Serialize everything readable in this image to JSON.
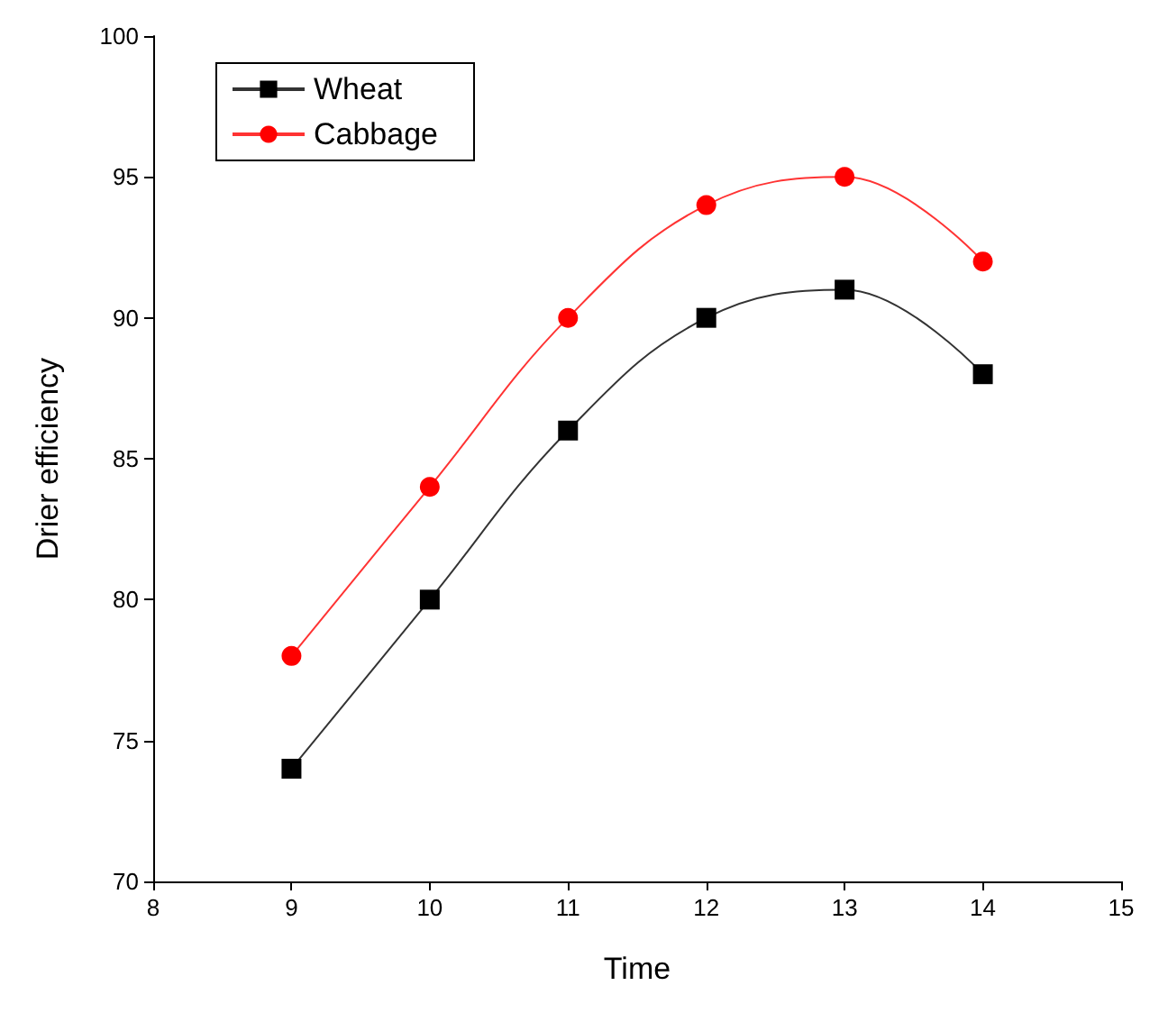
{
  "chart_data": {
    "type": "line",
    "xlabel": "Time",
    "ylabel": "Drier efficiency",
    "x": [
      9,
      10,
      11,
      12,
      13,
      14
    ],
    "series": [
      {
        "name": "Wheat",
        "color": "#000000",
        "marker": "square",
        "values": [
          74,
          80,
          86,
          90,
          91,
          88
        ]
      },
      {
        "name": "Cabbage",
        "color": "#ff0000",
        "marker": "circle",
        "values": [
          78,
          84,
          90,
          94,
          95,
          92
        ]
      }
    ],
    "xlim": [
      8,
      15
    ],
    "xticks": [
      8,
      9,
      10,
      11,
      12,
      13,
      14,
      15
    ],
    "ylim": [
      70,
      100
    ],
    "yticks": [
      70,
      75,
      80,
      85,
      90,
      95,
      100
    ],
    "grid": false,
    "legend": "top left",
    "line_style": "solid"
  }
}
